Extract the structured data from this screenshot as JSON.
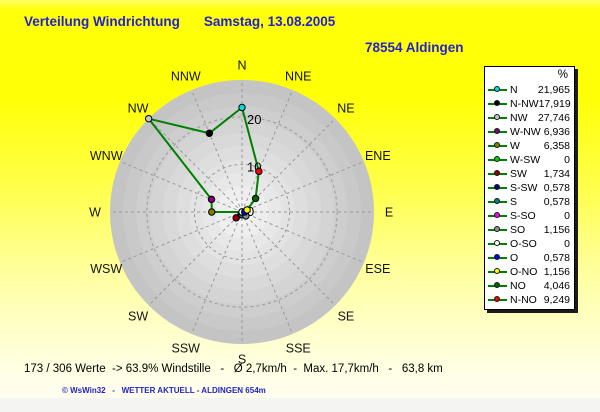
{
  "header": {
    "title": "Verteilung Windrichtung",
    "date": "Samstag, 13.08.2005",
    "station": "78554 Aldingen"
  },
  "footer": {
    "stats": "173 / 306 Werte  -> 63.9% Windstille   -   Ø 2,7km/h  -  Max. 17,7km/h   -   63,8 km",
    "copyright": "© WsWin32   -   WETTER AKTUELL - ALDINGEN 654m"
  },
  "colors": {
    "title_blue": "#2323cd",
    "line_green": "#008000",
    "band_outer_gray": "#c4c4c6",
    "band_inner_gray": "#f3f3f3",
    "grid_gray": "#9a9a9a",
    "background_yellow": "#ffff00"
  },
  "chart_data": {
    "type": "line",
    "subtype": "polar-wind-rose",
    "title": "Verteilung Windrichtung",
    "unit": "%",
    "axis_max": 27.746,
    "line_color": "#008000",
    "legend_header": "%",
    "legend_position": "right",
    "grid": "dashed spokes every 22.5deg, dashed rings at 10 and 20, shaded concentric bands",
    "ring_ticks": [
      {
        "r": 0,
        "label": "0"
      },
      {
        "r": 10,
        "label": "10"
      },
      {
        "r": 20,
        "label": "20"
      }
    ],
    "directions": [
      {
        "label": "N",
        "compass": "N",
        "angle": 0,
        "value": 21.965,
        "value_str": "21,965",
        "color": "#00dce0"
      },
      {
        "label": "N-NW",
        "compass": "NNW",
        "angle": 337.5,
        "value": 17.919,
        "value_str": "17,919",
        "color": "#000000"
      },
      {
        "label": "NW",
        "compass": "NW",
        "angle": 315,
        "value": 27.746,
        "value_str": "27,746",
        "color": "#c6c6c6"
      },
      {
        "label": "W-NW",
        "compass": "WNW",
        "angle": 292.5,
        "value": 6.936,
        "value_str": "6,936",
        "color": "#800080"
      },
      {
        "label": "W",
        "compass": "W",
        "angle": 270,
        "value": 6.358,
        "value_str": "6,358",
        "color": "#808000"
      },
      {
        "label": "W-SW",
        "compass": "WSW",
        "angle": 247.5,
        "value": 0,
        "value_str": "0",
        "color": "#00d400"
      },
      {
        "label": "SW",
        "compass": "SW",
        "angle": 225,
        "value": 1.734,
        "value_str": "1,734",
        "color": "#990000"
      },
      {
        "label": "S-SW",
        "compass": "SSW",
        "angle": 202.5,
        "value": 0.578,
        "value_str": "0,578",
        "color": "#000090"
      },
      {
        "label": "S",
        "compass": "S",
        "angle": 180,
        "value": 0.578,
        "value_str": "0,578",
        "color": "#008080"
      },
      {
        "label": "S-SO",
        "compass": "SSE",
        "angle": 157.5,
        "value": 0,
        "value_str": "0",
        "color": "#ff00ff"
      },
      {
        "label": "SO",
        "compass": "SE",
        "angle": 135,
        "value": 1.156,
        "value_str": "1,156",
        "color": "#909090"
      },
      {
        "label": "O-SO",
        "compass": "ESE",
        "angle": 112.5,
        "value": 0,
        "value_str": "0",
        "color": "#ffffff"
      },
      {
        "label": "O",
        "compass": "E",
        "angle": 90,
        "value": 0.578,
        "value_str": "0,578",
        "color": "#0000ff"
      },
      {
        "label": "O-NO",
        "compass": "ENE",
        "angle": 67.5,
        "value": 1.156,
        "value_str": "1,156",
        "color": "#ffff00"
      },
      {
        "label": "NO",
        "compass": "NE",
        "angle": 45,
        "value": 4.046,
        "value_str": "4,046",
        "color": "#006600"
      },
      {
        "label": "N-NO",
        "compass": "NNE",
        "angle": 22.5,
        "value": 9.249,
        "value_str": "9,249",
        "color": "#ff0000"
      }
    ]
  }
}
